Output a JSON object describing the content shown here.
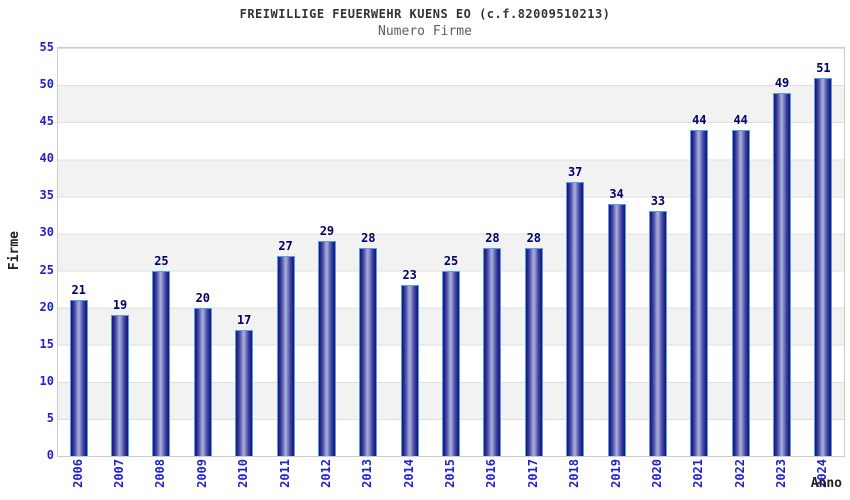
{
  "chart_data": {
    "type": "bar",
    "title": "FREIWILLIGE FEUERWEHR KUENS EO (c.f.82009510213)",
    "subtitle": "Numero Firme",
    "xlabel": "Anno",
    "ylabel": "Firme",
    "categories": [
      "2006",
      "2007",
      "2008",
      "2009",
      "2010",
      "2011",
      "2012",
      "2013",
      "2014",
      "2015",
      "2016",
      "2017",
      "2018",
      "2019",
      "2020",
      "2021",
      "2022",
      "2023",
      "2024"
    ],
    "values": [
      21,
      19,
      25,
      20,
      17,
      27,
      29,
      28,
      23,
      25,
      28,
      28,
      37,
      34,
      33,
      44,
      44,
      49,
      51
    ],
    "ylim": [
      0,
      55
    ],
    "ytick_step": 5,
    "grid": "horizontal",
    "legend": "none",
    "colors": {
      "tick_label": "#2222cc",
      "value_label": "#000066",
      "bar_edge_dark": "#14147a",
      "bar_mid": "#3a3a9a",
      "bar_highlight": "#aab2dd",
      "bar_border": "#55a0ee",
      "band_fill": "#f2f2f2",
      "gridline": "#e0e0e0",
      "plot_border": "#cccccc",
      "title_color": "#333333",
      "subtitle_color": "#606060",
      "axis_title_color": "#222222"
    }
  }
}
